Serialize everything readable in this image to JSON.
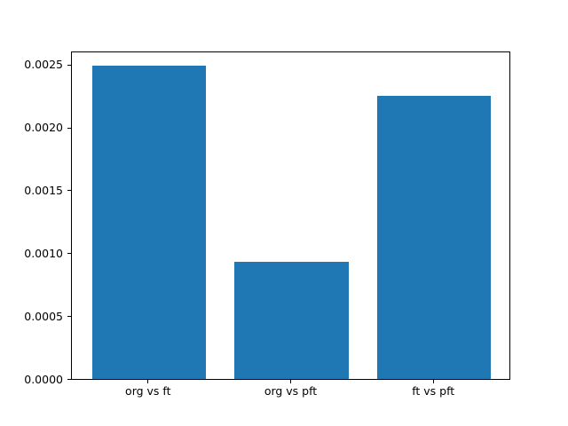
{
  "figure": {
    "background": "#ffffff",
    "spine_color": "#000000",
    "tick_color": "#000000"
  },
  "chart_data": {
    "type": "bar",
    "title": "",
    "xlabel": "",
    "ylabel": "",
    "categories": [
      "org vs ft",
      "org vs pft",
      "ft vs pft"
    ],
    "values": [
      0.00249,
      0.00093,
      0.00225
    ],
    "bar_color": "#1f77b4",
    "bar_width": 0.8,
    "xlim": [
      -0.54,
      2.54
    ],
    "ylim": [
      0,
      0.002611
    ],
    "yticks": [
      0.0,
      0.0005,
      0.001,
      0.0015,
      0.002,
      0.0025
    ],
    "ytick_labels": [
      "0.0000",
      "0.0005",
      "0.0010",
      "0.0015",
      "0.0020",
      "0.0025"
    ],
    "grid": false,
    "legend": null
  }
}
